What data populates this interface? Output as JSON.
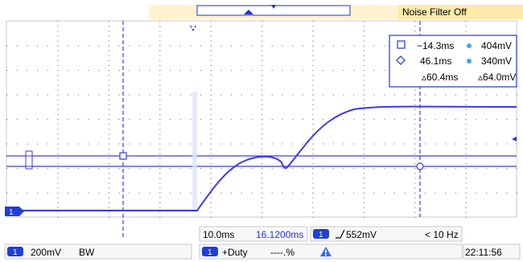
{
  "top_bar": {
    "noise_filter": "Noise Filter Off"
  },
  "cursor_readout": {
    "row1": {
      "time": "−14.3ms",
      "volt": "404mV"
    },
    "row2": {
      "time": "46.1ms",
      "volt": "340mV"
    },
    "row3": {
      "dtime": "▵60.4ms",
      "dvolt": "▵64.0mV"
    }
  },
  "timebase": {
    "scale": "10.0ms",
    "delay": "16.1200ms"
  },
  "trigger": {
    "channel": "1",
    "level": "552mV",
    "freq": "< 10 Hz"
  },
  "channel1": {
    "number": "1",
    "scale": "200mV",
    "bw": "BW"
  },
  "measurement": {
    "channel": "1",
    "name": "+Duty",
    "value": "----.%"
  },
  "clock": "22:11:56",
  "colors": {
    "trace": "#3a3af0",
    "grid": "#2233dd",
    "panel": "#f7f7f7",
    "badge": "#1f3fd6",
    "noise_bar": "#ffe9a8"
  }
}
